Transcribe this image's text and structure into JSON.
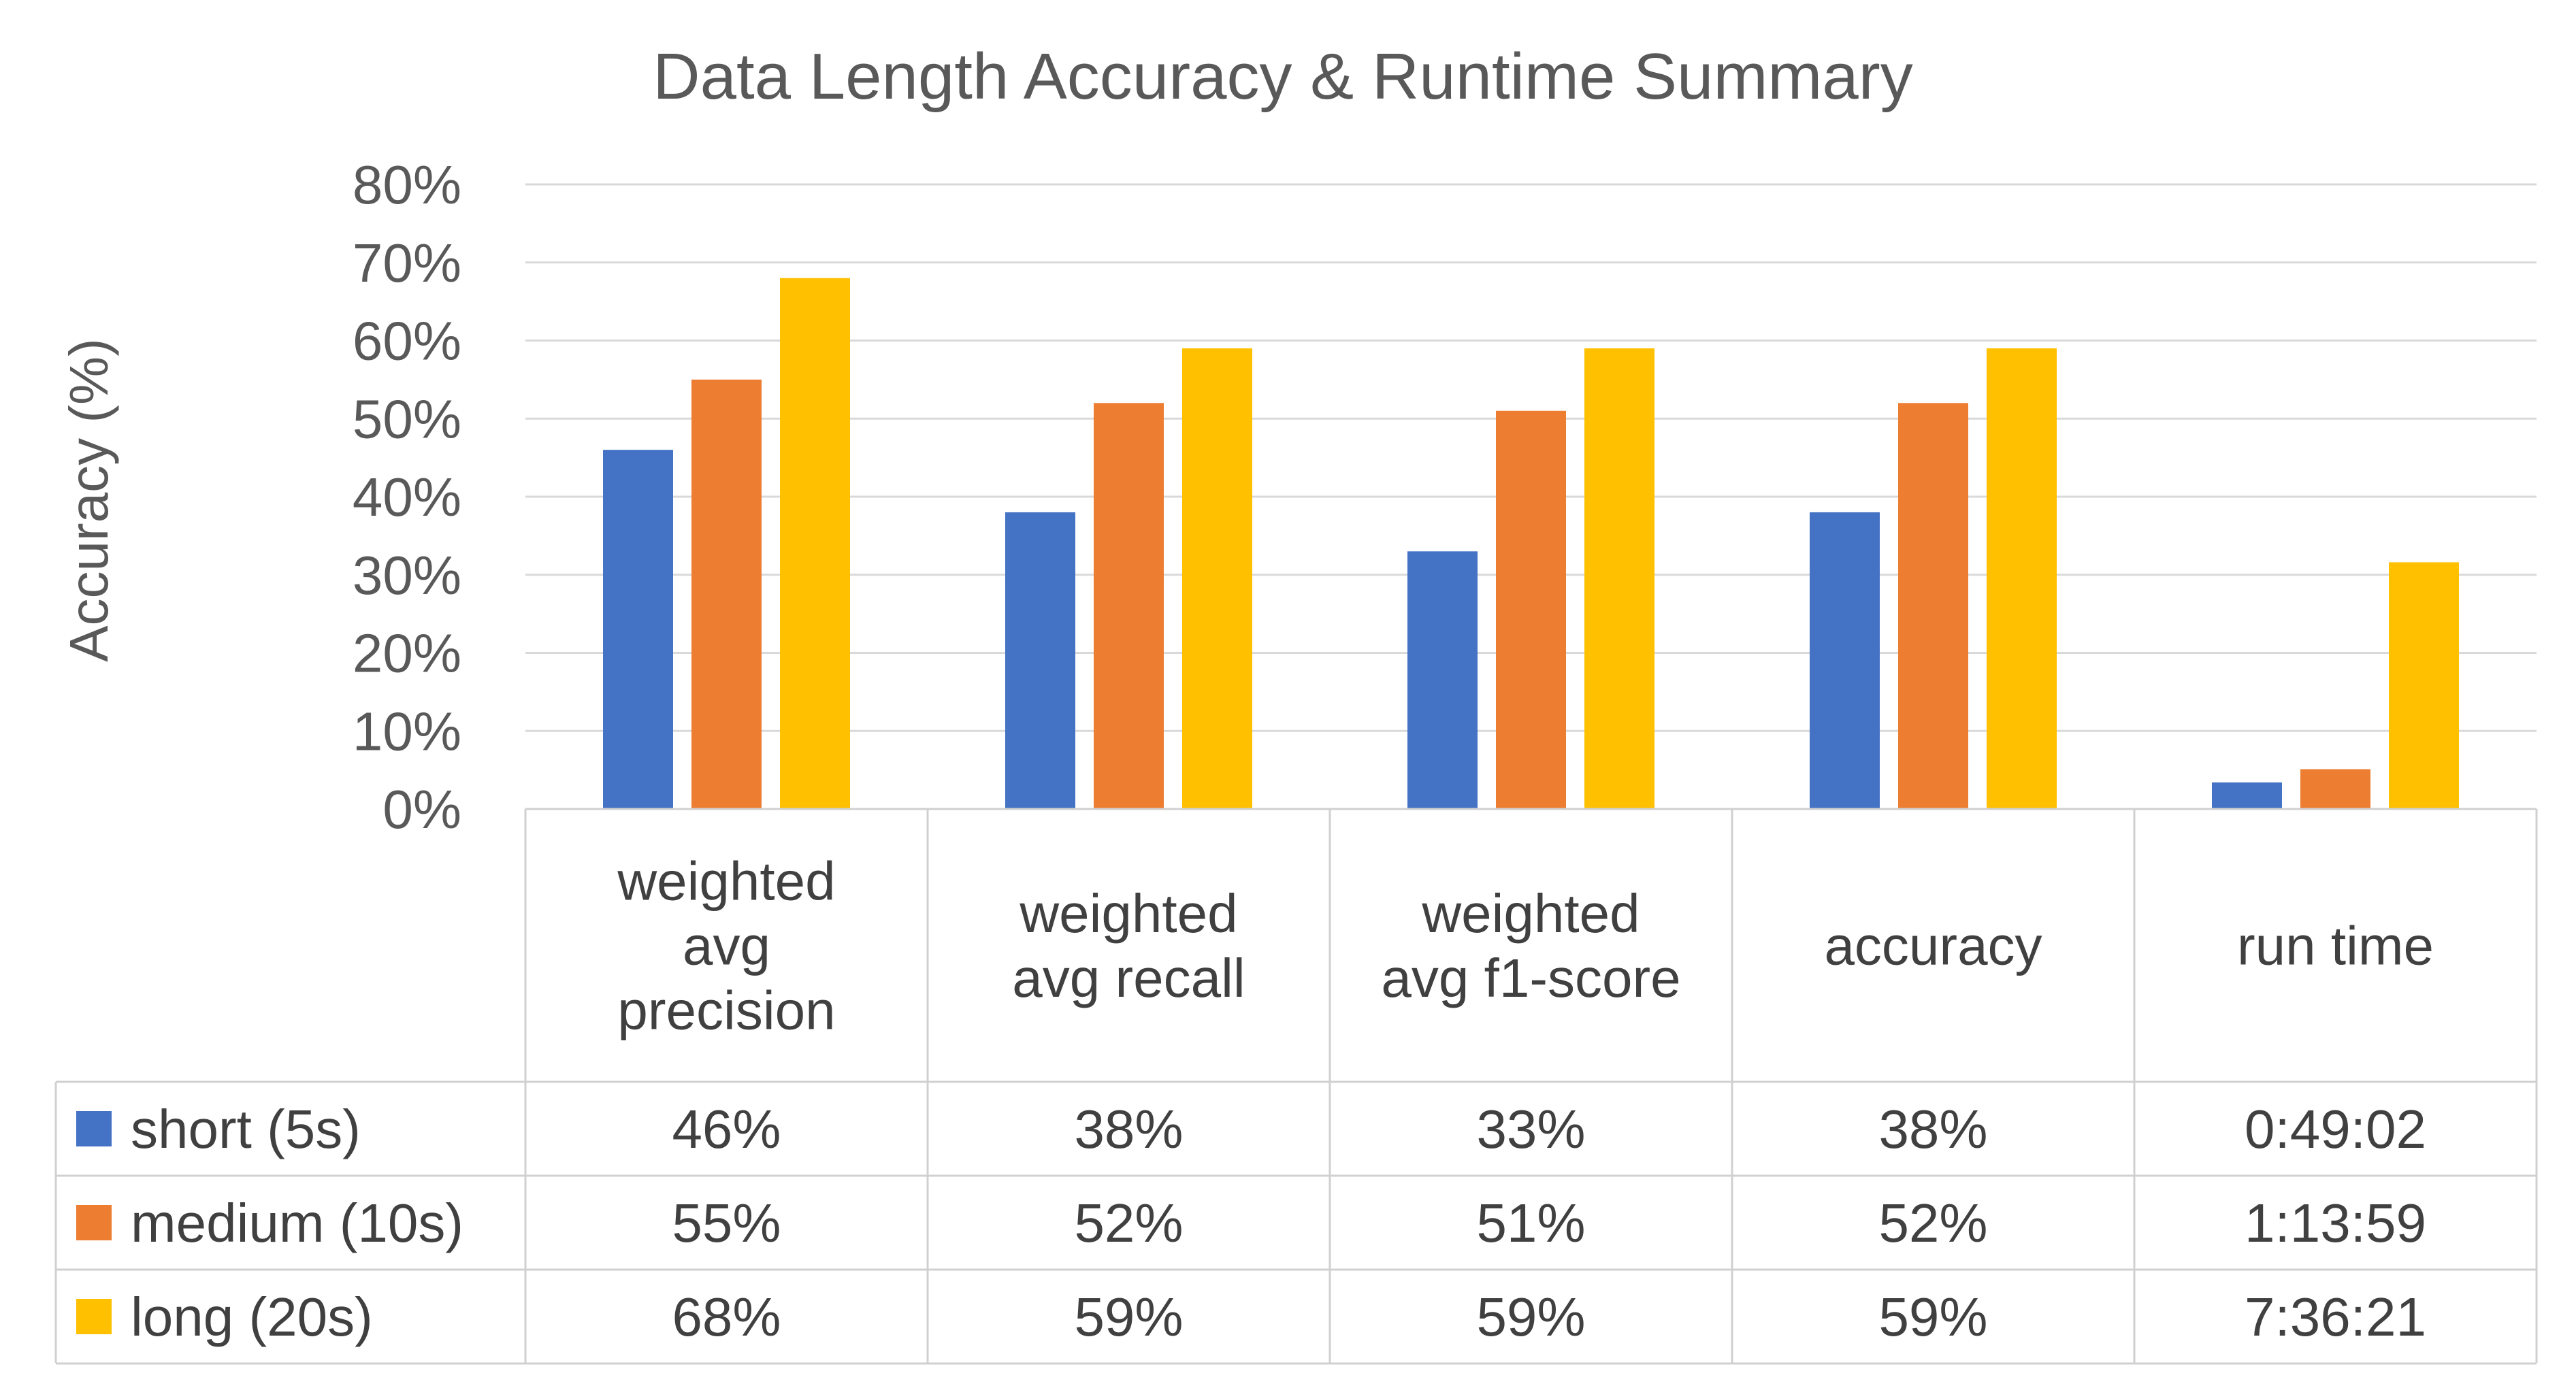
{
  "chart_data": {
    "type": "bar",
    "title": "Data Length Accuracy & Runtime Summary",
    "ylabel": "Accuracy (%)",
    "xlabel": "",
    "ylim": [
      0,
      0.8
    ],
    "y_ticks": [
      "0%",
      "10%",
      "20%",
      "30%",
      "40%",
      "50%",
      "60%",
      "70%",
      "80%"
    ],
    "y_tick_values": [
      0,
      0.1,
      0.2,
      0.3,
      0.4,
      0.5,
      0.6,
      0.7,
      0.8
    ],
    "grid": true,
    "legend": "data-table",
    "categories": [
      [
        "weighted",
        "avg",
        "precision"
      ],
      [
        "weighted",
        "avg recall"
      ],
      [
        "weighted",
        "avg f1-score"
      ],
      [
        "accuracy"
      ],
      [
        "run time"
      ]
    ],
    "series": [
      {
        "name": "short (5s)",
        "color": "#4472C4",
        "values": [
          0.46,
          0.38,
          0.33,
          0.38,
          0.034
        ],
        "labels": [
          "46%",
          "38%",
          "33%",
          "38%",
          "0:49:02"
        ]
      },
      {
        "name": "medium (10s)",
        "color": "#ED7D31",
        "values": [
          0.55,
          0.52,
          0.51,
          0.52,
          0.051
        ],
        "labels": [
          "55%",
          "52%",
          "51%",
          "52%",
          "1:13:59"
        ]
      },
      {
        "name": "long (20s)",
        "color": "#FFC000",
        "values": [
          0.68,
          0.59,
          0.59,
          0.59,
          0.316
        ],
        "labels": [
          "68%",
          "59%",
          "59%",
          "59%",
          "7:36:21"
        ]
      }
    ]
  }
}
